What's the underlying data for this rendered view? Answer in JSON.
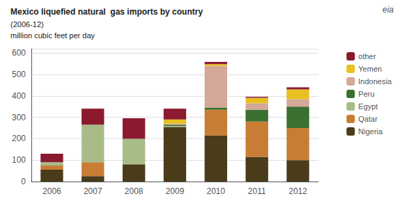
{
  "chart_data": {
    "type": "bar",
    "title": "Mexico liquefied natural  gas imports by country",
    "subtitle": "(2006-12)",
    "ylabel": "million cubic feet per day",
    "annotations": [
      "eia"
    ],
    "categories": [
      "2006",
      "2007",
      "2008",
      "2009",
      "2010",
      "2011",
      "2012"
    ],
    "series": [
      {
        "name": "Nigeria",
        "color": "#4a3b1a",
        "values": [
          55,
          25,
          80,
          255,
          215,
          115,
          100
        ]
      },
      {
        "name": "Qatar",
        "color": "#c87d35",
        "values": [
          20,
          65,
          0,
          0,
          120,
          165,
          150
        ]
      },
      {
        "name": "Egypt",
        "color": "#a8bc88",
        "values": [
          15,
          175,
          120,
          5,
          0,
          0,
          0
        ]
      },
      {
        "name": "Peru",
        "color": "#3a7030",
        "values": [
          0,
          0,
          0,
          5,
          10,
          55,
          100
        ]
      },
      {
        "name": "Indonesia",
        "color": "#d4a898",
        "values": [
          0,
          0,
          0,
          5,
          195,
          30,
          35
        ]
      },
      {
        "name": "Yemen",
        "color": "#e8c020",
        "values": [
          0,
          0,
          0,
          20,
          8,
          25,
          45
        ]
      },
      {
        "name": "other",
        "color": "#8b1a2e",
        "values": [
          40,
          75,
          95,
          50,
          10,
          5,
          10
        ]
      }
    ],
    "stacked": true,
    "ylim": [
      0,
      620
    ],
    "yticks": [
      0,
      100,
      200,
      300,
      400,
      500,
      600
    ],
    "grid": true,
    "legend": "right"
  }
}
